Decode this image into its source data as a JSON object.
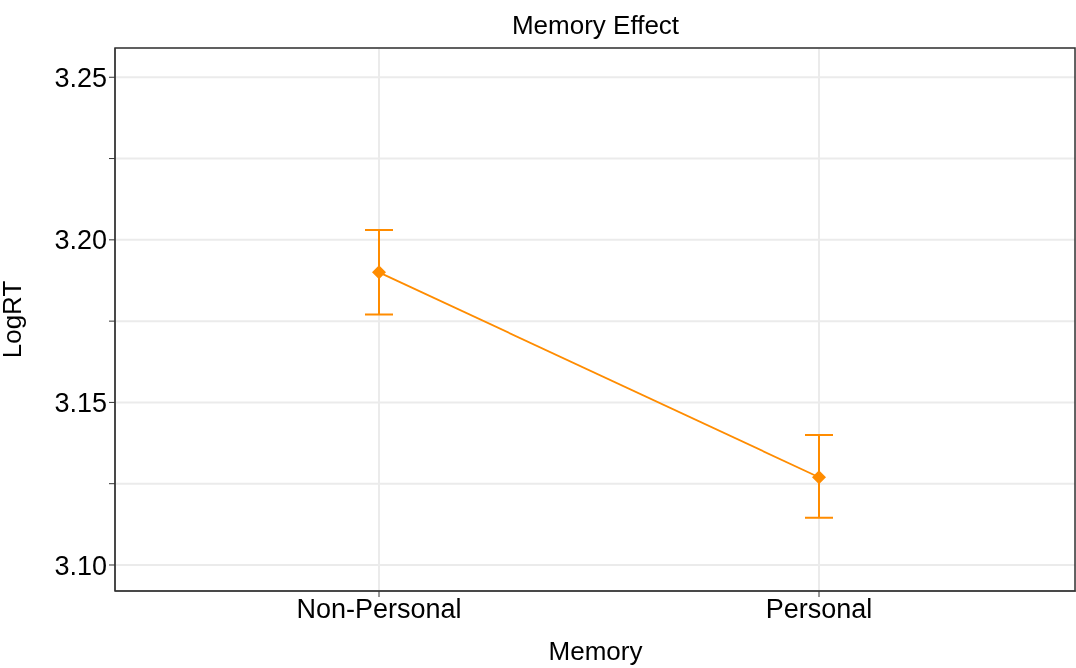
{
  "chart_data": {
    "type": "line",
    "title": "Memory Effect",
    "xlabel": "Memory",
    "ylabel": "LogRT",
    "categories": [
      "Non-Personal",
      "Personal"
    ],
    "values": [
      3.19,
      3.127
    ],
    "color": "#ff8c00",
    "errors": [
      [
        3.177,
        3.203
      ],
      [
        3.1145,
        3.14
      ]
    ],
    "ylim": [
      3.092,
      3.259
    ],
    "yticks": [
      {
        "value": 3.1,
        "label": "3.10"
      },
      {
        "value": 3.125,
        "label": null
      },
      {
        "value": 3.15,
        "label": "3.15"
      },
      {
        "value": 3.175,
        "label": null
      },
      {
        "value": 3.2,
        "label": "3.20"
      },
      {
        "value": 3.225,
        "label": null
      },
      {
        "value": 3.25,
        "label": "3.25"
      }
    ],
    "grid": true,
    "marker": "diamond",
    "line_style": "solid"
  }
}
